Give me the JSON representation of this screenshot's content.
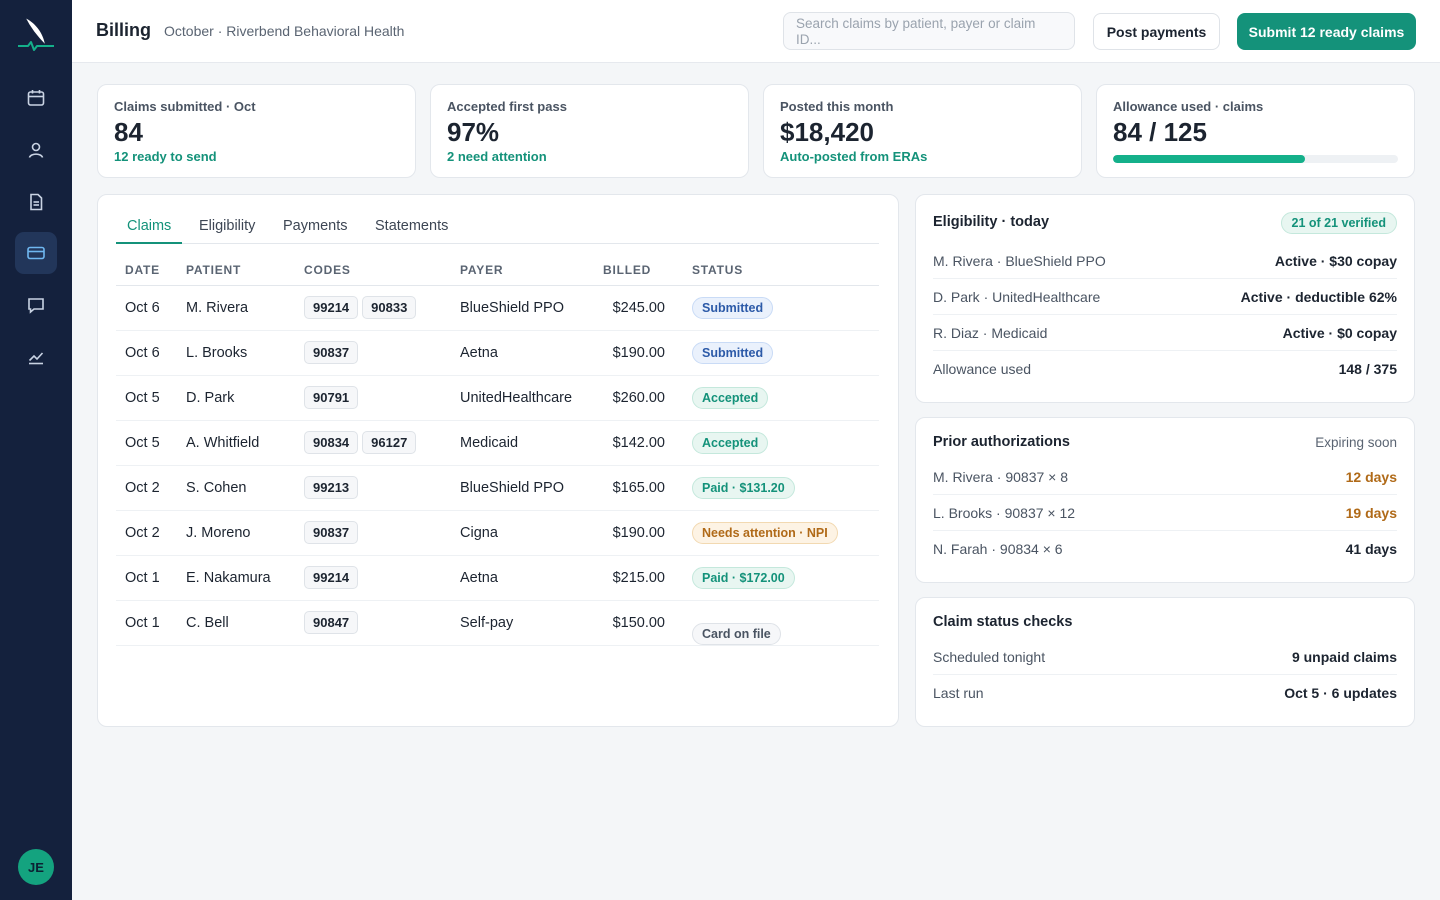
{
  "header": {
    "title": "Billing",
    "subtitle": "October · Riverbend Behavioral Health",
    "search_placeholder": "Search claims by patient, payer or claim ID...",
    "post_payments": "Post payments",
    "submit_claims": "Submit 12 ready claims"
  },
  "sidebar": {
    "items": [
      {
        "icon": "calendar-icon"
      },
      {
        "icon": "user-icon"
      },
      {
        "icon": "document-icon"
      },
      {
        "icon": "credit-card-icon",
        "active": true
      },
      {
        "icon": "message-icon"
      },
      {
        "icon": "chart-icon"
      }
    ],
    "avatar_initials": "JE"
  },
  "stats": [
    {
      "label": "Claims submitted · Oct",
      "value": "84",
      "sub": "12 ready to send"
    },
    {
      "label": "Accepted first pass",
      "value": "97%",
      "sub": "2 need attention"
    },
    {
      "label": "Posted this month",
      "value": "$18,420",
      "sub": "Auto-posted from ERAs"
    },
    {
      "label": "Allowance used · claims",
      "value": "84 / 125",
      "progress": 0.672
    }
  ],
  "tabs": [
    "Claims",
    "Eligibility",
    "Payments",
    "Statements"
  ],
  "claims_table": {
    "columns": [
      "DATE",
      "PATIENT",
      "CODES",
      "PAYER",
      "BILLED",
      "STATUS"
    ],
    "rows": [
      {
        "date": "Oct 6",
        "patient": "M. Rivera",
        "codes": [
          "99214",
          "90833"
        ],
        "payer": "BlueShield PPO",
        "billed": "$245.00",
        "status": "Submitted",
        "status_type": "submitted"
      },
      {
        "date": "Oct 6",
        "patient": "L. Brooks",
        "codes": [
          "90837"
        ],
        "payer": "Aetna",
        "billed": "$190.00",
        "status": "Submitted",
        "status_type": "submitted"
      },
      {
        "date": "Oct 5",
        "patient": "D. Park",
        "codes": [
          "90791"
        ],
        "payer": "UnitedHealthcare",
        "billed": "$260.00",
        "status": "Accepted",
        "status_type": "accepted"
      },
      {
        "date": "Oct 5",
        "patient": "A. Whitfield",
        "codes": [
          "90834",
          "96127"
        ],
        "payer": "Medicaid",
        "billed": "$142.00",
        "status": "Accepted",
        "status_type": "accepted"
      },
      {
        "date": "Oct 2",
        "patient": "S. Cohen",
        "codes": [
          "99213"
        ],
        "payer": "BlueShield PPO",
        "billed": "$165.00",
        "status": "Paid · $131.20",
        "status_type": "paid"
      },
      {
        "date": "Oct 2",
        "patient": "J. Moreno",
        "codes": [
          "90837"
        ],
        "payer": "Cigna",
        "billed": "$190.00",
        "status": "Needs attention · NPI",
        "status_type": "attention"
      },
      {
        "date": "Oct 1",
        "patient": "E. Nakamura",
        "codes": [
          "99214"
        ],
        "payer": "Aetna",
        "billed": "$215.00",
        "status": "Paid · $172.00",
        "status_type": "paid"
      },
      {
        "date": "Oct 1",
        "patient": "C. Bell",
        "codes": [
          "90847"
        ],
        "payer": "Self-pay",
        "billed": "$150.00",
        "status": "Card on file",
        "status_type": "card"
      }
    ]
  },
  "eligibility": {
    "title": "Eligibility · today",
    "badge": "21 of 21 verified",
    "rows": [
      {
        "k": "M. Rivera · BlueShield PPO",
        "v": "Active · $30 copay"
      },
      {
        "k": "D. Park · UnitedHealthcare",
        "v": "Active · deductible 62%"
      },
      {
        "k": "R. Diaz · Medicaid",
        "v": "Active · $0 copay"
      },
      {
        "k": "Allowance used",
        "v": "148 / 375"
      }
    ]
  },
  "prior_auth": {
    "title": "Prior authorizations",
    "aside": "Expiring soon",
    "rows": [
      {
        "k": "M. Rivera · 90837 × 8",
        "v": "12 days",
        "warn": true
      },
      {
        "k": "L. Brooks · 90837 × 12",
        "v": "19 days",
        "warn": true
      },
      {
        "k": "N. Farah · 90834 × 6",
        "v": "41 days",
        "warn": false
      }
    ]
  },
  "status_checks": {
    "title": "Claim status checks",
    "rows": [
      {
        "k": "Scheduled tonight",
        "v": "9 unpaid claims"
      },
      {
        "k": "Last run",
        "v": "Oct 5 · 6 updates"
      }
    ]
  },
  "colors": {
    "accent": "#14927a",
    "sidebar": "#14213d",
    "warning": "#b06a18"
  }
}
